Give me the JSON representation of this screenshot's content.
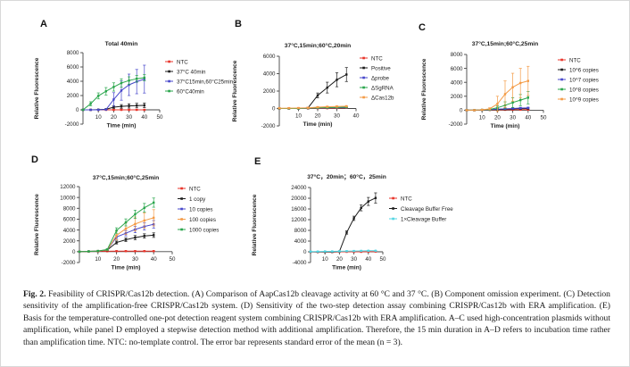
{
  "figure": {
    "caption": {
      "label": "Fig. 2.",
      "text": "Feasibility of CRISPR/Cas12b detection. (A) Comparison of AapCas12b cleavage activity at 60 °C and 37 °C. (B) Component omission experiment. (C) Detection sensitivity of the amplification-free CRISPR/Cas12b system. (D) Sensitivity of the two-step detection assay combining CRISPR/Cas12b with ERA amplification. (E) Basis for the temperature-controlled one-pot detection reagent system combining CRISPR/Cas12b with ERA amplification. A–C used high-concentration plasmids without amplification, while panel D employed a stepwise detection method with additional amplification. Therefore, the 15 min duration in A–D refers to incubation time rather than amplification time. NTC: no-template control. The error bar represents standard error of the mean (n = 3)."
    }
  },
  "colors": {
    "red": "#e8352b",
    "black": "#1c1c1c",
    "blue": "#4747cb",
    "green": "#2aa64c",
    "orange": "#f49b46",
    "cyan": "#53d6e3",
    "axis": "#444444"
  },
  "chart_data": [
    {
      "type": "line",
      "panel": "A",
      "title": "Total 40min",
      "xlabel": "Time (min)",
      "ylabel": "Relative Fluorescence",
      "xlim": [
        0,
        50
      ],
      "xticks": [
        10,
        20,
        30,
        40,
        50
      ],
      "ylim": [
        -2000,
        8000
      ],
      "yticks": [
        -2000,
        0,
        2000,
        4000,
        6000,
        8000
      ],
      "x": [
        0,
        5,
        10,
        15,
        20,
        25,
        30,
        35,
        40
      ],
      "legend_position": "right",
      "series": [
        {
          "name": "NTC",
          "color": "#e8352b",
          "values": [
            0,
            0,
            0,
            0,
            0,
            0,
            0,
            0,
            0
          ],
          "errors": [
            40,
            40,
            40,
            40,
            40,
            40,
            40,
            40,
            40
          ]
        },
        {
          "name": "37°C 40min",
          "color": "#1c1c1c",
          "values": [
            0,
            0,
            30,
            80,
            380,
            480,
            550,
            600,
            630
          ],
          "errors": [
            30,
            30,
            50,
            80,
            180,
            260,
            300,
            320,
            330
          ]
        },
        {
          "name": "37°C15min,60°C25min",
          "color": "#4747cb",
          "values": [
            0,
            0,
            0,
            40,
            1450,
            2700,
            3500,
            3950,
            4300
          ],
          "errors": [
            30,
            30,
            30,
            60,
            950,
            1350,
            1500,
            1700,
            1950
          ]
        },
        {
          "name": "60°C40min",
          "color": "#2aa64c",
          "values": [
            0,
            850,
            1950,
            2600,
            3200,
            3750,
            4100,
            4350,
            4500
          ],
          "errors": [
            60,
            280,
            420,
            520,
            580,
            600,
            520,
            470,
            420
          ]
        }
      ]
    },
    {
      "type": "line",
      "panel": "B",
      "title": "37°C,15min;60°C,20min",
      "xlabel": "Time (min)",
      "ylabel": "Relative Fluorescence",
      "xlim": [
        0,
        40
      ],
      "xticks": [
        10,
        20,
        30,
        40
      ],
      "ylim": [
        -2000,
        6000
      ],
      "yticks": [
        -2000,
        0,
        2000,
        4000,
        6000
      ],
      "x": [
        0,
        5,
        10,
        15,
        20,
        25,
        30,
        35
      ],
      "legend_position": "right",
      "series": [
        {
          "name": "NTC",
          "color": "#e8352b",
          "values": [
            0,
            0,
            0,
            0,
            30,
            30,
            50,
            80
          ],
          "errors": [
            50,
            50,
            50,
            50,
            50,
            50,
            50,
            50
          ]
        },
        {
          "name": "Positive",
          "color": "#1c1c1c",
          "values": [
            0,
            0,
            0,
            80,
            1500,
            2400,
            3300,
            3900
          ],
          "errors": [
            40,
            40,
            40,
            80,
            280,
            620,
            800,
            800
          ]
        },
        {
          "name": "Δprobe",
          "color": "#4747cb",
          "values": [
            0,
            0,
            0,
            30,
            60,
            80,
            100,
            120
          ],
          "errors": [
            50,
            50,
            50,
            50,
            50,
            50,
            50,
            50
          ]
        },
        {
          "name": "ΔSgRNA",
          "color": "#2aa64c",
          "values": [
            0,
            0,
            0,
            40,
            80,
            100,
            130,
            150
          ],
          "errors": [
            50,
            50,
            50,
            50,
            50,
            50,
            50,
            50
          ]
        },
        {
          "name": "ΔCas12b",
          "color": "#f49b46",
          "values": [
            30,
            40,
            50,
            80,
            150,
            200,
            230,
            260
          ],
          "errors": [
            60,
            60,
            60,
            60,
            60,
            60,
            60,
            60
          ]
        }
      ]
    },
    {
      "type": "line",
      "panel": "C",
      "title": "37°C,15min;60°C,25min",
      "xlabel": "Time (min)",
      "ylabel": "Relative Fluorescence",
      "xlim": [
        0,
        50
      ],
      "xticks": [
        10,
        20,
        30,
        40,
        50
      ],
      "ylim": [
        -2000,
        8000
      ],
      "yticks": [
        -2000,
        0,
        2000,
        4000,
        6000,
        8000
      ],
      "x": [
        0,
        5,
        10,
        15,
        20,
        25,
        30,
        35,
        40
      ],
      "legend_position": "right",
      "series": [
        {
          "name": "NTC",
          "color": "#e8352b",
          "values": [
            0,
            0,
            20,
            40,
            50,
            60,
            70,
            80,
            80
          ],
          "errors": [
            50,
            50,
            50,
            50,
            50,
            50,
            50,
            50,
            50
          ]
        },
        {
          "name": "10^6 copies",
          "color": "#1c1c1c",
          "values": [
            0,
            0,
            30,
            60,
            100,
            150,
            180,
            220,
            250
          ],
          "errors": [
            60,
            60,
            60,
            70,
            80,
            80,
            80,
            80,
            80
          ]
        },
        {
          "name": "10^7 copies",
          "color": "#4747cb",
          "values": [
            0,
            0,
            40,
            80,
            150,
            200,
            250,
            300,
            330
          ],
          "errors": [
            60,
            60,
            70,
            80,
            90,
            100,
            100,
            100,
            100
          ]
        },
        {
          "name": "10^8 copies",
          "color": "#2aa64c",
          "values": [
            0,
            0,
            50,
            100,
            350,
            700,
            1100,
            1450,
            1800
          ],
          "errors": [
            40,
            40,
            60,
            100,
            300,
            500,
            700,
            800,
            900
          ]
        },
        {
          "name": "10^9 copies",
          "color": "#f49b46",
          "values": [
            0,
            0,
            50,
            200,
            900,
            2300,
            3300,
            3900,
            4200
          ],
          "errors": [
            40,
            40,
            60,
            150,
            1100,
            1900,
            2000,
            2100,
            2100
          ]
        }
      ]
    },
    {
      "type": "line",
      "panel": "D",
      "title": "37°C,15min;60°C,25min",
      "xlabel": "Time (min)",
      "ylabel": "Relative Fluorescence",
      "xlim": [
        0,
        50
      ],
      "xticks": [
        10,
        20,
        30,
        40,
        50
      ],
      "ylim": [
        -2000,
        12000
      ],
      "yticks": [
        -2000,
        0,
        2000,
        4000,
        6000,
        8000,
        10000,
        12000
      ],
      "x": [
        0,
        5,
        10,
        15,
        20,
        25,
        30,
        35,
        40
      ],
      "legend_position": "right",
      "series": [
        {
          "name": "NTC",
          "color": "#e8352b",
          "values": [
            0,
            30,
            50,
            80,
            100,
            100,
            100,
            100,
            100
          ],
          "errors": [
            50,
            50,
            50,
            50,
            60,
            60,
            60,
            60,
            60
          ]
        },
        {
          "name": "1 copy",
          "color": "#1c1c1c",
          "values": [
            0,
            50,
            100,
            300,
            1700,
            2200,
            2600,
            2900,
            3050
          ],
          "errors": [
            30,
            40,
            60,
            120,
            280,
            320,
            380,
            400,
            420
          ]
        },
        {
          "name": "10 copies",
          "color": "#4747cb",
          "values": [
            0,
            50,
            120,
            350,
            2700,
            3400,
            4100,
            4650,
            5050
          ],
          "errors": [
            30,
            40,
            60,
            130,
            400,
            500,
            600,
            650,
            700
          ]
        },
        {
          "name": "100 copies",
          "color": "#f49b46",
          "values": [
            0,
            50,
            120,
            350,
            3000,
            4250,
            5100,
            5750,
            6250
          ],
          "errors": [
            30,
            40,
            60,
            130,
            800,
            1100,
            1300,
            1400,
            1500
          ]
        },
        {
          "name": "1000 copies",
          "color": "#2aa64c",
          "values": [
            0,
            50,
            130,
            400,
            3900,
            5400,
            6900,
            8100,
            9050
          ],
          "errors": [
            30,
            40,
            60,
            140,
            500,
            650,
            750,
            800,
            850
          ]
        }
      ]
    },
    {
      "type": "line",
      "panel": "E",
      "title": "37°C，20min；60°C，25min",
      "xlabel": "Time (min)",
      "ylabel": "Relative Fluorescence",
      "xlim": [
        0,
        50
      ],
      "xticks": [
        10,
        20,
        30,
        40,
        50
      ],
      "ylim": [
        -4000,
        24000
      ],
      "yticks": [
        -4000,
        0,
        4000,
        8000,
        12000,
        16000,
        20000,
        24000
      ],
      "x": [
        0,
        5,
        10,
        15,
        20,
        25,
        30,
        35,
        40,
        45
      ],
      "legend_position": "right",
      "series": [
        {
          "name": "NTC",
          "color": "#e8352b",
          "values": [
            0,
            -100,
            0,
            -100,
            0,
            0,
            0,
            0,
            100,
            100
          ],
          "errors": [
            100,
            100,
            100,
            100,
            100,
            100,
            100,
            100,
            100,
            100
          ]
        },
        {
          "name": "Cleavage Buffer Free",
          "color": "#1c1c1c",
          "values": [
            0,
            0,
            0,
            0,
            150,
            7200,
            12500,
            16400,
            18800,
            20100
          ],
          "errors": [
            50,
            50,
            50,
            50,
            100,
            600,
            800,
            1100,
            1500,
            1900
          ]
        },
        {
          "name": "1×Cleavage Buffer",
          "color": "#53d6e3",
          "values": [
            100,
            100,
            150,
            150,
            200,
            250,
            300,
            350,
            400,
            400
          ],
          "errors": [
            80,
            80,
            80,
            80,
            100,
            100,
            120,
            120,
            150,
            150
          ]
        }
      ]
    }
  ]
}
